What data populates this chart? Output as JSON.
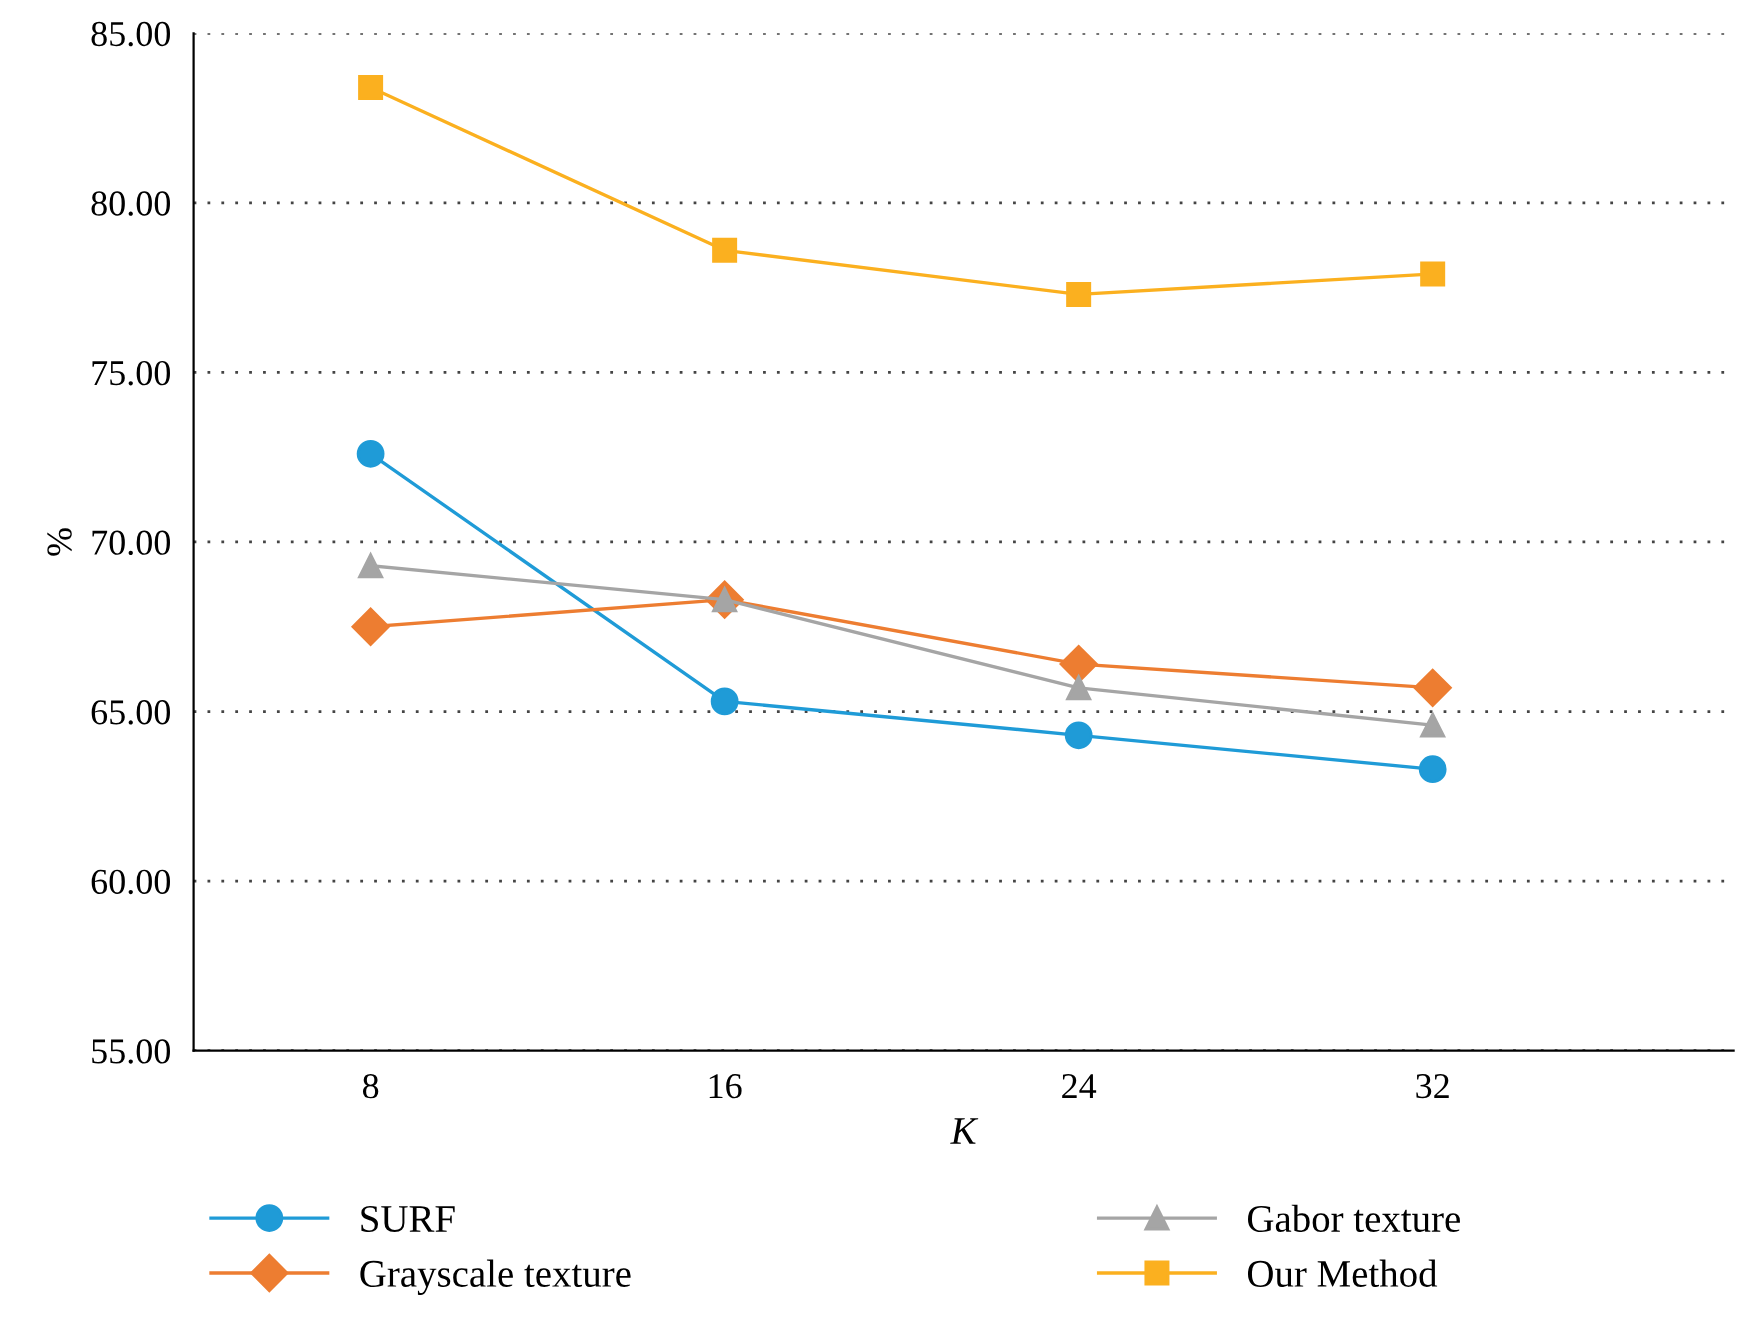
{
  "chart_data": {
    "type": "line",
    "xlabel": "K",
    "ylabel": "%",
    "categories": [
      "8",
      "16",
      "24",
      "32"
    ],
    "series": [
      {
        "name": "SURF",
        "color": "#1f9bd7",
        "marker": "circle",
        "values": [
          72.6,
          65.3,
          64.3,
          63.3
        ]
      },
      {
        "name": "Grayscale texture",
        "color": "#ed7d31",
        "marker": "diamond",
        "values": [
          67.5,
          68.3,
          66.4,
          65.7
        ]
      },
      {
        "name": "Gabor texture",
        "color": "#a5a5a5",
        "marker": "triangle",
        "values": [
          69.3,
          68.3,
          65.7,
          64.6
        ]
      },
      {
        "name": "Our Method",
        "color": "#fbb01f",
        "marker": "square",
        "values": [
          83.4,
          78.6,
          77.3,
          77.9
        ]
      }
    ],
    "ylim": [
      55,
      85
    ],
    "yticks": [
      {
        "value": 55,
        "label": "55.00"
      },
      {
        "value": 60,
        "label": "60.00"
      },
      {
        "value": 65,
        "label": "65.00"
      },
      {
        "value": 70,
        "label": "70.00"
      },
      {
        "value": 75,
        "label": "75.00"
      },
      {
        "value": 80,
        "label": "80.00"
      },
      {
        "value": 85,
        "label": "85.00"
      }
    ],
    "grid": "y",
    "legend": "bottom",
    "line_style": "solid"
  }
}
